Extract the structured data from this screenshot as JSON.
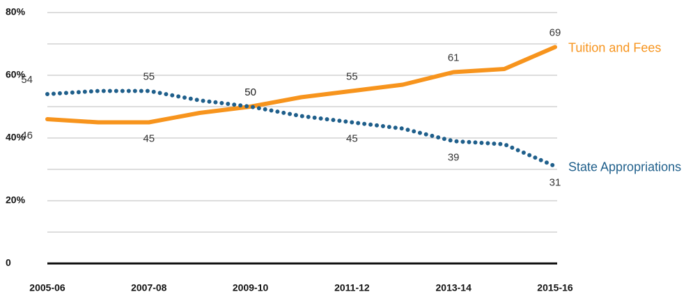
{
  "chart_data": {
    "type": "line",
    "categories": [
      "2005-06",
      null,
      "2007-08",
      null,
      "2009-10",
      null,
      "2011-12",
      null,
      "2013-14",
      null,
      "2015-16"
    ],
    "series": [
      {
        "name": "Tuition and Fees",
        "color": "#f7941d",
        "style": "solid",
        "values": [
          46,
          45,
          45,
          48,
          50,
          53,
          55,
          57,
          61,
          62,
          69
        ],
        "value_labels": [
          "46",
          null,
          "45",
          null,
          "50",
          null,
          "55",
          null,
          "61",
          null,
          "69"
        ]
      },
      {
        "name": "State Appropriations",
        "color": "#1f5f8b",
        "style": "dotted",
        "values": [
          54,
          55,
          55,
          52,
          50,
          47,
          45,
          43,
          39,
          38,
          31
        ],
        "value_labels": [
          "54",
          null,
          "55",
          null,
          "50",
          null,
          "45",
          null,
          "39",
          null,
          "31"
        ]
      }
    ],
    "ylim": [
      0,
      80
    ],
    "yticks": [
      0,
      {
        "value": 20,
        "label": "20%"
      },
      {
        "value": 40,
        "label": "40%"
      },
      {
        "value": 60,
        "label": "60%"
      },
      {
        "value": 80,
        "label": "80%"
      }
    ],
    "minor_yticks": [
      10,
      30,
      50,
      70
    ],
    "grid": true
  }
}
